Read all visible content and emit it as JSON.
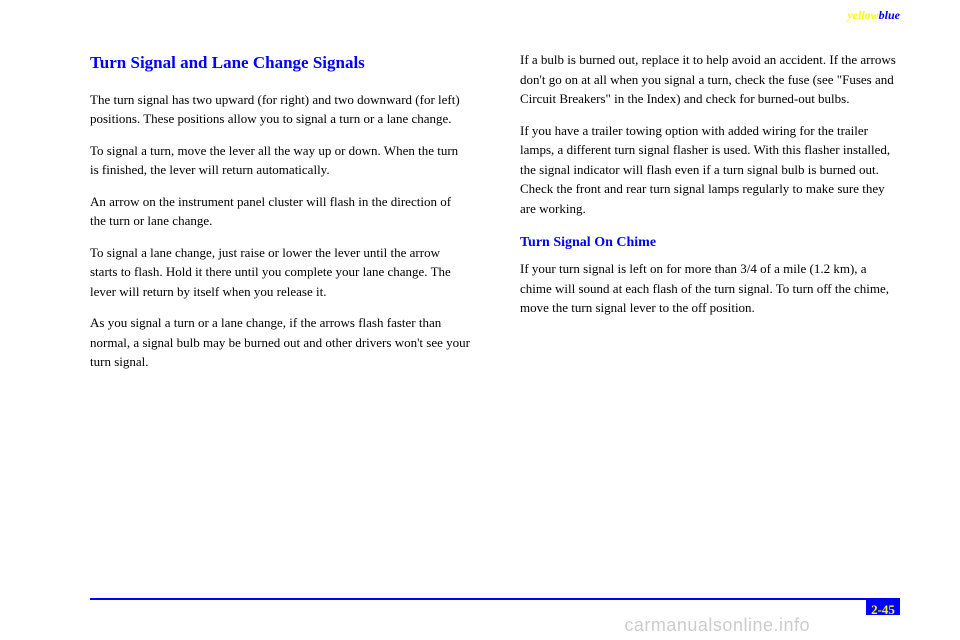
{
  "header": {
    "yellow": "yellow",
    "blue": "blue"
  },
  "left": {
    "heading": "Turn Signal and Lane Change Signals",
    "p1": "The turn signal has two upward (for right) and two downward (for left) positions. These positions allow you to signal a turn or a lane change.",
    "p2": "To signal a turn, move the lever all the way up or down. When the turn is finished, the lever will return automatically.",
    "p3": "An arrow on the instrument panel cluster will flash in the direction of the turn or lane change.",
    "p4": "To signal a lane change, just raise or lower the lever until the arrow starts to flash. Hold it there until you complete your lane change. The lever will return by itself when you release it.",
    "p5": "As you signal a turn or a lane change, if the arrows flash faster than normal, a signal bulb may be burned out and other drivers won't see your turn signal."
  },
  "right": {
    "p1": "If a bulb is burned out, replace it to help avoid an accident. If the arrows don't go on at all when you signal a turn, check the fuse (see \"Fuses and Circuit Breakers\" in the Index) and check for burned-out bulbs.",
    "p2": "If you have a trailer towing option with added wiring for the trailer lamps, a different turn signal flasher is used. With this flasher installed, the signal indicator will flash even if a turn signal bulb is burned out. Check the front and rear turn signal lamps regularly to make sure they are working.",
    "subheading": "Turn Signal On Chime",
    "p3": "If your turn signal is left on for more than 3/4 of a mile (1.2 km), a chime will sound at each flash of the turn signal. To turn off the chime, move the turn signal lever to the off position."
  },
  "pageNumber": "2-45",
  "watermark": "carmanualsonline.info",
  "colors": {
    "accent": "#0000ff",
    "highlight": "#ffff00"
  }
}
